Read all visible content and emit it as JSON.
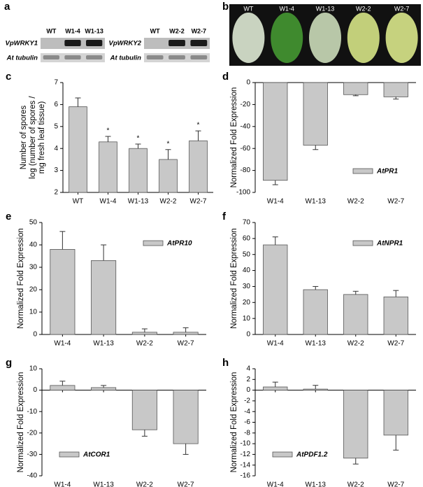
{
  "figure": {
    "panel_a": {
      "label": "a",
      "gels": [
        {
          "gene": "VpWRKY1",
          "control": "At tubulin",
          "lanes": [
            "WT",
            "W1-4",
            "W1-13"
          ]
        },
        {
          "gene": "VpWRKY2",
          "control": "At tubulin",
          "lanes": [
            "WT",
            "W2-2",
            "W2-7"
          ]
        }
      ]
    },
    "panel_b": {
      "label": "b",
      "lanes": [
        "WT",
        "W1-4",
        "W1-13",
        "W2-2",
        "W2-7"
      ]
    }
  },
  "chart_data": [
    {
      "type": "bar",
      "label": "c",
      "ylabel": [
        "Number of spores",
        "log (number of spores /",
        "mg fresh leaf tissue)"
      ],
      "categories": [
        "WT",
        "W1-4",
        "W1-13",
        "W2-2",
        "W2-7"
      ],
      "series": [
        {
          "color": "#c8c8c8",
          "values": [
            5.9,
            4.3,
            4.0,
            3.5,
            4.35
          ],
          "errors": [
            0.4,
            0.25,
            0.2,
            0.45,
            0.45
          ]
        }
      ],
      "annotations": [
        {
          "x": "W1-4",
          "text": "*"
        },
        {
          "x": "W1-13",
          "text": "*"
        },
        {
          "x": "W2-2",
          "text": "*"
        },
        {
          "x": "W2-7",
          "text": "*"
        }
      ],
      "ylim": [
        2,
        7
      ],
      "yticks": [
        2,
        3,
        4,
        5,
        6,
        7
      ]
    },
    {
      "type": "bar",
      "label": "d",
      "ylabel": [
        "Normalized Fold Expression"
      ],
      "categories": [
        "W1-4",
        "W1-13",
        "W2-2",
        "W2-7"
      ],
      "series": [
        {
          "name": "AtPR1",
          "color": "#c8c8c8",
          "values": [
            -89,
            -57,
            -11,
            -13
          ],
          "errors": [
            4,
            4,
            1,
            2
          ]
        }
      ],
      "legend": "lower right",
      "ylim": [
        -100,
        0
      ],
      "yticks": [
        -100,
        -80,
        -60,
        -40,
        -20,
        0
      ]
    },
    {
      "type": "bar",
      "label": "e",
      "ylabel": [
        "Normalized Fold Expression"
      ],
      "categories": [
        "W1-4",
        "W1-13",
        "W2-2",
        "W2-7"
      ],
      "series": [
        {
          "name": "AtPR10",
          "color": "#c8c8c8",
          "values": [
            38,
            33,
            1,
            1
          ],
          "errors": [
            8,
            7,
            1.5,
            2
          ]
        }
      ],
      "legend": "upper right",
      "ylim": [
        0,
        50
      ],
      "yticks": [
        0,
        10,
        20,
        30,
        40,
        50
      ]
    },
    {
      "type": "bar",
      "label": "f",
      "ylabel": [
        "Normalized Fold Expression"
      ],
      "categories": [
        "W1-4",
        "W1-13",
        "W2-2",
        "W2-7"
      ],
      "series": [
        {
          "name": "AtNPR1",
          "color": "#c8c8c8",
          "values": [
            56,
            28,
            25,
            23.5
          ],
          "errors": [
            5,
            2,
            2,
            4
          ]
        }
      ],
      "legend": "upper right",
      "ylim": [
        0,
        70
      ],
      "yticks": [
        0,
        10,
        20,
        30,
        40,
        50,
        60,
        70
      ]
    },
    {
      "type": "bar",
      "label": "g",
      "ylabel": [
        "Normalized Fold Expression"
      ],
      "categories": [
        "W1-4",
        "W1-13",
        "W2-2",
        "W2-7"
      ],
      "series": [
        {
          "name": "AtCOR1",
          "color": "#c8c8c8",
          "values": [
            2.2,
            1.2,
            -18.5,
            -25
          ],
          "errors": [
            2,
            1,
            3,
            5
          ]
        }
      ],
      "legend": "lower left",
      "ylim": [
        -40,
        10
      ],
      "yticks": [
        -40,
        -30,
        -20,
        -10,
        0,
        10
      ]
    },
    {
      "type": "bar",
      "label": "h",
      "ylabel": [
        "Normalized Fold Expression"
      ],
      "categories": [
        "W1-4",
        "W1-13",
        "W2-2",
        "W2-7"
      ],
      "series": [
        {
          "name": "AtPDF1.2",
          "color": "#c8c8c8",
          "values": [
            0.6,
            0.2,
            -12.7,
            -8.4
          ],
          "errors": [
            0.9,
            0.7,
            1.1,
            2.8
          ]
        }
      ],
      "legend": "lower left",
      "ylim": [
        -16,
        4
      ],
      "yticks": [
        -16,
        -14,
        -12,
        -10,
        -8,
        -6,
        -4,
        -2,
        0,
        2,
        4
      ]
    }
  ]
}
